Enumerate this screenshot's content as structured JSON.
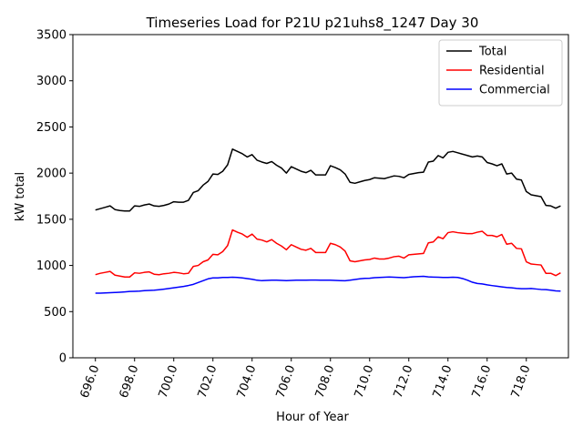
{
  "chart_data": {
    "type": "line",
    "title": "Timeseries Load for P21U p21uhs8_1247  Day 30",
    "xlabel": "Hour of Year",
    "ylabel": "kW total",
    "xlim": [
      694.85,
      720.15
    ],
    "ylim": [
      0,
      3500
    ],
    "xticks": [
      696,
      698,
      700,
      702,
      704,
      706,
      708,
      710,
      712,
      714,
      716,
      718
    ],
    "xtick_labels": [
      "696.0",
      "698.0",
      "700.0",
      "702.0",
      "704.0",
      "706.0",
      "708.0",
      "710.0",
      "712.0",
      "714.0",
      "716.0",
      "718.0"
    ],
    "yticks": [
      0,
      500,
      1000,
      1500,
      2000,
      2500,
      3000,
      3500
    ],
    "ytick_labels": [
      "0",
      "500",
      "1000",
      "1500",
      "2000",
      "2500",
      "3000",
      "3500"
    ],
    "legend_position": "upper-right",
    "x": [
      696.0,
      696.25,
      696.5,
      696.75,
      697.0,
      697.25,
      697.5,
      697.75,
      698.0,
      698.25,
      698.5,
      698.75,
      699.0,
      699.25,
      699.5,
      699.75,
      700.0,
      700.25,
      700.5,
      700.75,
      701.0,
      701.25,
      701.5,
      701.75,
      702.0,
      702.25,
      702.5,
      702.75,
      703.0,
      703.25,
      703.5,
      703.75,
      704.0,
      704.25,
      704.5,
      704.75,
      705.0,
      705.25,
      705.5,
      705.75,
      706.0,
      706.25,
      706.5,
      706.75,
      707.0,
      707.25,
      707.5,
      707.75,
      708.0,
      708.25,
      708.5,
      708.75,
      709.0,
      709.25,
      709.5,
      709.75,
      710.0,
      710.25,
      710.5,
      710.75,
      711.0,
      711.25,
      711.5,
      711.75,
      712.0,
      712.25,
      712.5,
      712.75,
      713.0,
      713.25,
      713.5,
      713.75,
      714.0,
      714.25,
      714.5,
      714.75,
      715.0,
      715.25,
      715.5,
      715.75,
      716.0,
      716.25,
      716.5,
      716.75,
      717.0,
      717.25,
      717.5,
      717.75,
      718.0,
      718.25,
      718.5,
      718.75,
      719.0,
      719.25,
      719.5,
      719.75
    ],
    "series": [
      {
        "name": "Total",
        "color": "#000000",
        "values": [
          1600,
          1615,
          1630,
          1645,
          1605,
          1595,
          1590,
          1590,
          1645,
          1640,
          1655,
          1665,
          1645,
          1640,
          1650,
          1665,
          1690,
          1685,
          1685,
          1705,
          1790,
          1810,
          1870,
          1910,
          1990,
          1985,
          2020,
          2090,
          2260,
          2235,
          2210,
          2175,
          2200,
          2140,
          2120,
          2105,
          2125,
          2085,
          2055,
          2000,
          2070,
          2045,
          2020,
          2005,
          2030,
          1980,
          1980,
          1980,
          2080,
          2060,
          2035,
          1990,
          1900,
          1890,
          1905,
          1920,
          1930,
          1950,
          1945,
          1940,
          1955,
          1970,
          1965,
          1950,
          1985,
          1995,
          2005,
          2010,
          2120,
          2130,
          2190,
          2165,
          2225,
          2235,
          2220,
          2205,
          2190,
          2175,
          2185,
          2175,
          2115,
          2100,
          2080,
          2100,
          1990,
          2000,
          1935,
          1925,
          1800,
          1765,
          1755,
          1745,
          1650,
          1645,
          1620,
          1645
        ]
      },
      {
        "name": "Residential",
        "color": "#ff0000",
        "values": [
          900,
          915,
          925,
          935,
          895,
          885,
          875,
          875,
          920,
          915,
          925,
          930,
          905,
          900,
          910,
          915,
          925,
          920,
          910,
          915,
          990,
          1000,
          1040,
          1060,
          1120,
          1115,
          1150,
          1215,
          1385,
          1360,
          1340,
          1305,
          1340,
          1285,
          1275,
          1255,
          1280,
          1240,
          1210,
          1170,
          1225,
          1200,
          1175,
          1165,
          1185,
          1140,
          1140,
          1140,
          1240,
          1225,
          1200,
          1155,
          1050,
          1040,
          1050,
          1060,
          1065,
          1080,
          1070,
          1070,
          1080,
          1095,
          1100,
          1080,
          1115,
          1120,
          1125,
          1130,
          1245,
          1255,
          1310,
          1290,
          1355,
          1365,
          1355,
          1350,
          1345,
          1345,
          1360,
          1370,
          1325,
          1325,
          1310,
          1335,
          1230,
          1240,
          1185,
          1180,
          1040,
          1015,
          1010,
          1005,
          915,
          915,
          890,
          920
        ]
      },
      {
        "name": "Commercial",
        "color": "#0000ff",
        "values": [
          700,
          700,
          702,
          705,
          707,
          710,
          714,
          718,
          720,
          722,
          727,
          730,
          732,
          737,
          743,
          750,
          758,
          765,
          773,
          783,
          795,
          815,
          835,
          855,
          865,
          865,
          870,
          870,
          872,
          870,
          865,
          858,
          850,
          840,
          835,
          838,
          840,
          840,
          838,
          835,
          838,
          840,
          840,
          840,
          842,
          842,
          840,
          840,
          840,
          838,
          836,
          834,
          840,
          848,
          855,
          860,
          862,
          868,
          870,
          872,
          875,
          873,
          870,
          868,
          872,
          878,
          880,
          882,
          876,
          874,
          872,
          870,
          870,
          872,
          870,
          858,
          840,
          818,
          805,
          800,
          790,
          782,
          775,
          768,
          762,
          758,
          752,
          748,
          748,
          750,
          745,
          740,
          738,
          732,
          725,
          722
        ]
      }
    ]
  }
}
